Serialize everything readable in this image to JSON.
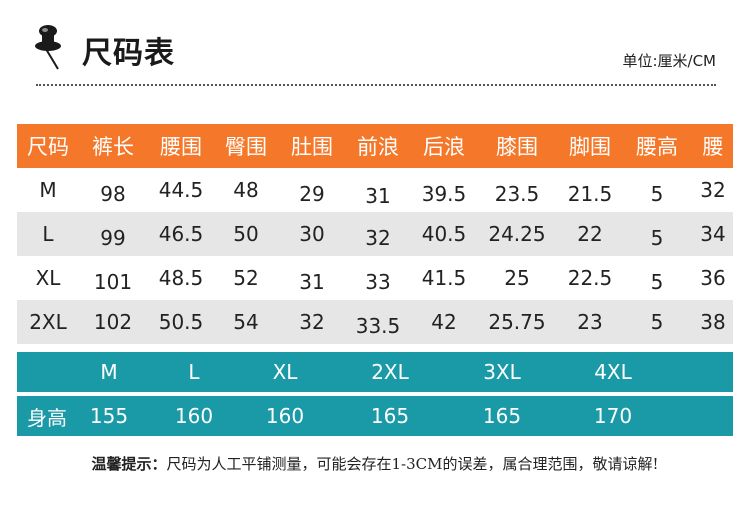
{
  "header": {
    "title": "尺码表",
    "unit": "单位:厘米/CM"
  },
  "size_table": {
    "columns": [
      "尺码",
      "裤长",
      "腰围",
      "臀围",
      "肚围",
      "前浪",
      "后浪",
      "膝围",
      "脚围",
      "腰高",
      "腰"
    ],
    "rows": [
      [
        "M",
        "98",
        "44.5",
        "48",
        "29",
        "31",
        "39.5",
        "23.5",
        "21.5",
        "5",
        "32"
      ],
      [
        "L",
        "99",
        "46.5",
        "50",
        "30",
        "32",
        "40.5",
        "24.25",
        "22",
        "5",
        "34"
      ],
      [
        "XL",
        "101",
        "48.5",
        "52",
        "31",
        "33",
        "41.5",
        "25",
        "22.5",
        "5",
        "36"
      ],
      [
        "2XL",
        "102",
        "50.5",
        "54",
        "32",
        "33.5",
        "42",
        "25.75",
        "23",
        "5",
        "38"
      ]
    ]
  },
  "height_table": {
    "sizes": [
      "M",
      "L",
      "XL",
      "2XL",
      "3XL",
      "4XL"
    ],
    "height_label": "身高",
    "heights": [
      "155",
      "160",
      "160",
      "165",
      "165",
      "170"
    ]
  },
  "note": {
    "label": "温馨提示：",
    "text": "尺码为人工平铺测量，可能会存在1-3CM的误差，属合理范围，敬请谅解!"
  },
  "colors": {
    "header_orange": "#f5782a",
    "band_teal": "#1a9aa6",
    "stripe_gray": "#e6e6e6"
  }
}
